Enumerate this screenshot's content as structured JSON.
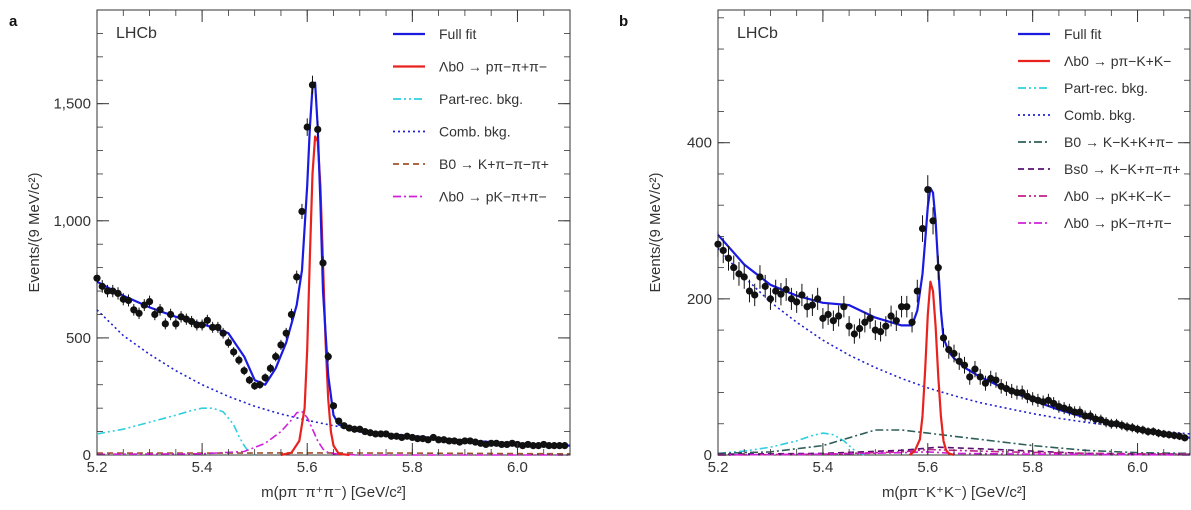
{
  "chart_data": [
    {
      "type": "scatter",
      "panel": "a",
      "experiment": "LHCb",
      "xlabel": "m(pπ⁻π⁺π⁻) [GeV/c²]",
      "ylabel": "Events/(9 MeV/c²)",
      "xlim": [
        5.2,
        6.1
      ],
      "ylim": [
        0,
        1900
      ],
      "xticks": [
        5.2,
        5.4,
        5.6,
        5.8,
        6.0
      ],
      "xtick_labels": [
        "5.2",
        "5.4",
        "5.6",
        "5.8",
        "6.0"
      ],
      "yticks": [
        0,
        500,
        1000,
        1500
      ],
      "ytick_labels": [
        "0",
        "500",
        "1,000",
        "1,500"
      ],
      "legend_position": "top-right",
      "legend": [
        {
          "label": "Full fit",
          "color": "#1a1ae0",
          "style": "solid"
        },
        {
          "label": "Λb0 → pπ−π+π−",
          "color": "#e8231f",
          "style": "solid"
        },
        {
          "label": "Part-rec. bkg.",
          "color": "#2fcfe0",
          "style": "dashdotdot"
        },
        {
          "label": "Comb. bkg.",
          "color": "#2020d0",
          "style": "dotted"
        },
        {
          "label": "B0 → K+π−π−π+",
          "color": "#a0522d",
          "style": "dashed"
        },
        {
          "label": "Λb0 → pK−π+π−",
          "color": "#d020d8",
          "style": "dashdot"
        }
      ],
      "data_points": {
        "x": [
          5.2,
          5.21,
          5.22,
          5.23,
          5.24,
          5.25,
          5.26,
          5.27,
          5.28,
          5.29,
          5.3,
          5.31,
          5.32,
          5.33,
          5.34,
          5.35,
          5.36,
          5.37,
          5.38,
          5.39,
          5.4,
          5.41,
          5.42,
          5.43,
          5.44,
          5.45,
          5.46,
          5.47,
          5.48,
          5.49,
          5.5,
          5.51,
          5.52,
          5.53,
          5.54,
          5.55,
          5.56,
          5.57,
          5.58,
          5.59,
          5.6,
          5.61,
          5.62,
          5.63,
          5.64,
          5.65,
          5.66,
          5.67,
          5.68,
          5.69,
          5.7,
          5.71,
          5.72,
          5.73,
          5.74,
          5.75,
          5.76,
          5.77,
          5.78,
          5.79,
          5.8,
          5.81,
          5.82,
          5.83,
          5.84,
          5.85,
          5.86,
          5.87,
          5.88,
          5.89,
          5.9,
          5.91,
          5.92,
          5.93,
          5.94,
          5.95,
          5.96,
          5.97,
          5.98,
          5.99,
          6.0,
          6.01,
          6.02,
          6.03,
          6.04,
          6.05,
          6.06,
          6.07,
          6.08,
          6.09
        ],
        "y": [
          755,
          720,
          700,
          700,
          690,
          665,
          660,
          620,
          605,
          640,
          655,
          600,
          620,
          560,
          600,
          560,
          590,
          580,
          570,
          555,
          555,
          575,
          545,
          545,
          520,
          480,
          440,
          405,
          360,
          320,
          295,
          300,
          330,
          370,
          420,
          470,
          520,
          600,
          760,
          1040,
          1400,
          1580,
          1390,
          820,
          420,
          210,
          145,
          125,
          115,
          110,
          110,
          100,
          95,
          90,
          90,
          90,
          80,
          80,
          75,
          80,
          75,
          70,
          70,
          65,
          75,
          65,
          65,
          60,
          60,
          55,
          60,
          60,
          55,
          50,
          45,
          50,
          50,
          45,
          45,
          50,
          45,
          40,
          45,
          40,
          40,
          45,
          40,
          40,
          40,
          40
        ]
      },
      "full_fit": {
        "x": [
          5.2,
          5.25,
          5.3,
          5.35,
          5.4,
          5.45,
          5.48,
          5.5,
          5.52,
          5.54,
          5.56,
          5.58,
          5.59,
          5.6,
          5.605,
          5.61,
          5.615,
          5.62,
          5.625,
          5.63,
          5.64,
          5.65,
          5.66,
          5.68,
          5.7,
          5.75,
          5.8,
          5.85,
          5.9,
          5.95,
          6.0,
          6.05,
          6.1
        ],
        "y": [
          740,
          680,
          630,
          590,
          560,
          520,
          420,
          320,
          300,
          370,
          480,
          640,
          790,
          1150,
          1400,
          1570,
          1590,
          1400,
          1080,
          700,
          340,
          170,
          130,
          112,
          100,
          90,
          80,
          70,
          62,
          55,
          48,
          43,
          40
        ]
      },
      "signal": {
        "x": [
          5.55,
          5.57,
          5.585,
          5.595,
          5.6,
          5.605,
          5.61,
          5.615,
          5.62,
          5.625,
          5.63,
          5.635,
          5.64,
          5.645,
          5.65,
          5.66,
          5.68
        ],
        "y": [
          0,
          10,
          60,
          200,
          450,
          850,
          1200,
          1360,
          1340,
          1150,
          820,
          480,
          240,
          100,
          40,
          5,
          0
        ]
      },
      "part_rec_bkg": {
        "x": [
          5.2,
          5.25,
          5.3,
          5.35,
          5.38,
          5.4,
          5.42,
          5.44,
          5.46,
          5.47,
          5.48,
          5.49,
          5.5
        ],
        "y": [
          90,
          110,
          140,
          170,
          190,
          200,
          200,
          185,
          130,
          80,
          40,
          10,
          0
        ]
      },
      "comb_bkg": {
        "x": [
          5.2,
          5.25,
          5.3,
          5.35,
          5.4,
          5.45,
          5.5,
          5.55,
          5.6,
          5.65,
          5.7,
          5.75,
          5.8,
          5.85,
          5.9,
          5.95,
          6.0,
          6.05,
          6.1
        ],
        "y": [
          620,
          510,
          430,
          360,
          300,
          250,
          208,
          175,
          148,
          125,
          107,
          93,
          82,
          72,
          64,
          57,
          51,
          46,
          42
        ]
      },
      "b0_bkg": {
        "x": [
          5.2,
          5.4,
          5.6,
          5.8,
          6.0,
          6.1
        ],
        "y": [
          8,
          8,
          9,
          8,
          6,
          5
        ]
      },
      "lb_pkpipi": {
        "x": [
          5.2,
          5.4,
          5.48,
          5.52,
          5.55,
          5.57,
          5.58,
          5.59,
          5.6,
          5.61,
          5.62,
          5.63,
          5.64,
          5.66,
          5.7,
          6.1
        ],
        "y": [
          3,
          5,
          15,
          50,
          100,
          150,
          180,
          185,
          160,
          110,
          60,
          25,
          10,
          3,
          0,
          0
        ]
      }
    },
    {
      "type": "scatter",
      "panel": "b",
      "experiment": "LHCb",
      "xlabel": "m(pπ⁻K⁺K⁻) [GeV/c²]",
      "ylabel": "Events/(9 MeV/c²)",
      "xlim": [
        5.2,
        6.1
      ],
      "ylim": [
        0,
        570
      ],
      "xticks": [
        5.2,
        5.4,
        5.6,
        5.8,
        6.0
      ],
      "xtick_labels": [
        "5.2",
        "5.4",
        "5.6",
        "5.8",
        "6.0"
      ],
      "yticks": [
        0,
        200,
        400
      ],
      "ytick_labels": [
        "0",
        "200",
        "400"
      ],
      "legend_position": "top-right",
      "legend": [
        {
          "label": "Full fit",
          "color": "#1a1ae0",
          "style": "solid"
        },
        {
          "label": "Λb0 → pπ−K+K−",
          "color": "#e8231f",
          "style": "solid"
        },
        {
          "label": "Part-rec. bkg.",
          "color": "#2fcfe0",
          "style": "dashdotdot"
        },
        {
          "label": "Comb. bkg.",
          "color": "#2020d0",
          "style": "dotted"
        },
        {
          "label": "B0 → K−K+K+π−",
          "color": "#2f5f5a",
          "style": "dashdot"
        },
        {
          "label": "Bs0 → K−K+π−π+",
          "color": "#5a1070",
          "style": "dashed"
        },
        {
          "label": "Λb0 → pK+K−K−",
          "color": "#c0208a",
          "style": "dashdotdot"
        },
        {
          "label": "Λb0 → pK−π+π−",
          "color": "#d020d8",
          "style": "dashdot"
        }
      ],
      "data_points": {
        "x": [
          5.2,
          5.21,
          5.22,
          5.23,
          5.24,
          5.25,
          5.26,
          5.27,
          5.28,
          5.29,
          5.3,
          5.31,
          5.32,
          5.33,
          5.34,
          5.35,
          5.36,
          5.37,
          5.38,
          5.39,
          5.4,
          5.41,
          5.42,
          5.43,
          5.44,
          5.45,
          5.46,
          5.47,
          5.48,
          5.49,
          5.5,
          5.51,
          5.52,
          5.53,
          5.54,
          5.55,
          5.56,
          5.57,
          5.58,
          5.59,
          5.6,
          5.61,
          5.62,
          5.63,
          5.64,
          5.65,
          5.66,
          5.67,
          5.68,
          5.69,
          5.7,
          5.71,
          5.72,
          5.73,
          5.74,
          5.75,
          5.76,
          5.77,
          5.78,
          5.79,
          5.8,
          5.81,
          5.82,
          5.83,
          5.84,
          5.85,
          5.86,
          5.87,
          5.88,
          5.89,
          5.9,
          5.91,
          5.92,
          5.93,
          5.94,
          5.95,
          5.96,
          5.97,
          5.98,
          5.99,
          6.0,
          6.01,
          6.02,
          6.03,
          6.04,
          6.05,
          6.06,
          6.07,
          6.08,
          6.09
        ],
        "y": [
          270,
          262,
          252,
          240,
          232,
          228,
          210,
          205,
          228,
          216,
          200,
          210,
          206,
          212,
          200,
          196,
          205,
          190,
          192,
          200,
          175,
          180,
          172,
          178,
          190,
          165,
          155,
          162,
          170,
          175,
          160,
          158,
          165,
          178,
          172,
          190,
          190,
          170,
          210,
          290,
          340,
          300,
          240,
          150,
          135,
          130,
          120,
          115,
          100,
          110,
          100,
          92,
          98,
          96,
          88,
          85,
          82,
          80,
          80,
          75,
          72,
          70,
          68,
          70,
          66,
          62,
          60,
          58,
          55,
          55,
          50,
          50,
          46,
          45,
          42,
          40,
          40,
          38,
          36,
          35,
          33,
          32,
          30,
          30,
          28,
          27,
          26,
          25,
          24,
          22
        ]
      },
      "full_fit": {
        "x": [
          5.2,
          5.25,
          5.3,
          5.35,
          5.4,
          5.45,
          5.5,
          5.55,
          5.57,
          5.58,
          5.59,
          5.595,
          5.6,
          5.605,
          5.61,
          5.615,
          5.62,
          5.625,
          5.63,
          5.64,
          5.65,
          5.67,
          5.7,
          5.75,
          5.8,
          5.85,
          5.9,
          5.95,
          6.0,
          6.05,
          6.1
        ],
        "y": [
          282,
          244,
          218,
          204,
          195,
          192,
          176,
          166,
          166,
          185,
          232,
          275,
          318,
          342,
          336,
          300,
          240,
          185,
          150,
          132,
          124,
          112,
          100,
          84,
          70,
          58,
          48,
          40,
          33,
          27,
          22
        ]
      },
      "signal": {
        "x": [
          5.565,
          5.575,
          5.585,
          5.59,
          5.595,
          5.6,
          5.605,
          5.61,
          5.615,
          5.62,
          5.625,
          5.63,
          5.635,
          5.64,
          5.65
        ],
        "y": [
          0,
          5,
          20,
          50,
          110,
          180,
          222,
          210,
          165,
          100,
          50,
          18,
          6,
          2,
          0
        ]
      },
      "part_rec_bkg": {
        "x": [
          5.2,
          5.25,
          5.3,
          5.35,
          5.38,
          5.4,
          5.42,
          5.44,
          5.45,
          5.46,
          5.47,
          5.48
        ],
        "y": [
          2,
          5,
          10,
          18,
          25,
          28,
          26,
          18,
          12,
          6,
          2,
          0
        ]
      },
      "comb_bkg": {
        "x": [
          5.2,
          5.25,
          5.3,
          5.35,
          5.4,
          5.45,
          5.5,
          5.55,
          5.6,
          5.65,
          5.7,
          5.75,
          5.8,
          5.85,
          5.9,
          5.95,
          6.0,
          6.05,
          6.1
        ],
        "y": [
          265,
          228,
          196,
          170,
          147,
          128,
          112,
          98,
          86,
          76,
          67,
          60,
          53,
          47,
          42,
          38,
          34,
          30,
          27
        ]
      },
      "b0_bkg": {
        "x": [
          5.2,
          5.3,
          5.4,
          5.45,
          5.5,
          5.55,
          5.6,
          5.65,
          5.7,
          5.75,
          5.8,
          5.9,
          6.0,
          6.1
        ],
        "y": [
          2,
          4,
          12,
          22,
          32,
          32,
          28,
          24,
          20,
          16,
          12,
          6,
          3,
          2
        ]
      },
      "bs_bkg": {
        "x": [
          5.2,
          5.4,
          5.55,
          5.62,
          5.7,
          5.8,
          5.9,
          6.1
        ],
        "y": [
          1,
          2,
          6,
          10,
          8,
          5,
          2,
          1
        ]
      },
      "lb_pkkk": {
        "x": [
          5.2,
          5.4,
          5.55,
          5.6,
          5.65,
          5.75,
          5.9,
          6.1
        ],
        "y": [
          0,
          1,
          4,
          7,
          6,
          4,
          2,
          1
        ]
      },
      "lb_pkpipi": {
        "x": [
          5.2,
          5.4,
          5.55,
          5.6,
          5.65,
          5.8,
          6.1
        ],
        "y": [
          0,
          1,
          3,
          4,
          2,
          1,
          0
        ]
      }
    }
  ]
}
